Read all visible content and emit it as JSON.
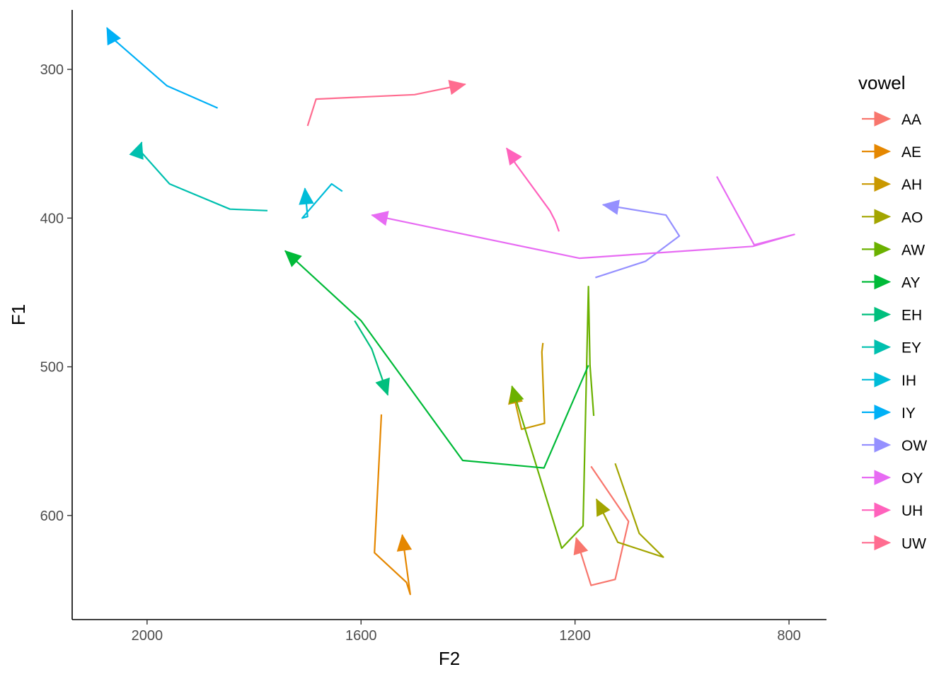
{
  "chart_data": {
    "type": "line",
    "xlabel": "F2",
    "ylabel": "F1",
    "x_reversed": true,
    "y_reversed": true,
    "xlim": [
      2140,
      730
    ],
    "ylim": [
      260,
      670
    ],
    "x_ticks": [
      2000,
      1600,
      1200,
      800
    ],
    "y_ticks": [
      300,
      400,
      500,
      600
    ],
    "grid": false,
    "legend": {
      "title": "vowel",
      "position": "right"
    },
    "series": [
      {
        "name": "AA",
        "color": "#F8766D",
        "points": [
          [
            1170,
            567
          ],
          [
            1100,
            604
          ],
          [
            1125,
            643
          ],
          [
            1170,
            647
          ],
          [
            1198,
            615
          ]
        ]
      },
      {
        "name": "AE",
        "color": "#E58700",
        "points": [
          [
            1562,
            532
          ],
          [
            1575,
            625
          ],
          [
            1515,
            645
          ],
          [
            1508,
            653
          ],
          [
            1523,
            613
          ]
        ]
      },
      {
        "name": "AH",
        "color": "#C99800",
        "points": [
          [
            1260,
            484
          ],
          [
            1262,
            490
          ],
          [
            1257,
            538
          ],
          [
            1300,
            542
          ],
          [
            1318,
            514
          ]
        ]
      },
      {
        "name": "AO",
        "color": "#A3A500",
        "points": [
          [
            1125,
            565
          ],
          [
            1080,
            612
          ],
          [
            1035,
            628
          ],
          [
            1120,
            618
          ],
          [
            1160,
            589
          ]
        ]
      },
      {
        "name": "AW",
        "color": "#6BB100",
        "points": [
          [
            1165,
            533
          ],
          [
            1172,
            499
          ],
          [
            1175,
            446
          ],
          [
            1185,
            607
          ],
          [
            1225,
            622
          ],
          [
            1318,
            513
          ]
        ]
      },
      {
        "name": "AY",
        "color": "#00BA38",
        "points": [
          [
            1175,
            499
          ],
          [
            1258,
            568
          ],
          [
            1410,
            563
          ],
          [
            1600,
            469
          ],
          [
            1742,
            422
          ]
        ]
      },
      {
        "name": "EH",
        "color": "#00BF7D",
        "points": [
          [
            1612,
            469
          ],
          [
            1580,
            488
          ],
          [
            1550,
            519
          ]
        ]
      },
      {
        "name": "EY",
        "color": "#00C0AF",
        "points": [
          [
            1775,
            395
          ],
          [
            1845,
            394
          ],
          [
            1958,
            377
          ],
          [
            2015,
            354
          ],
          [
            2010,
            349
          ]
        ]
      },
      {
        "name": "IH",
        "color": "#00BCD8",
        "points": [
          [
            1635,
            382
          ],
          [
            1655,
            377
          ],
          [
            1710,
            400
          ],
          [
            1700,
            399
          ],
          [
            1705,
            380
          ]
        ]
      },
      {
        "name": "IY",
        "color": "#00B0F6",
        "points": [
          [
            1868,
            326
          ],
          [
            1963,
            311
          ],
          [
            2065,
            279
          ],
          [
            2075,
            272
          ]
        ]
      },
      {
        "name": "OW",
        "color": "#9590FF",
        "points": [
          [
            1162,
            440
          ],
          [
            1068,
            429
          ],
          [
            1005,
            412
          ],
          [
            1030,
            398
          ],
          [
            1148,
            391
          ]
        ]
      },
      {
        "name": "OY",
        "color": "#E76BF3",
        "points": [
          [
            935,
            372
          ],
          [
            865,
            418
          ],
          [
            790,
            411
          ],
          [
            868,
            419
          ],
          [
            1192,
            427
          ],
          [
            1580,
            398
          ]
        ]
      },
      {
        "name": "UH",
        "color": "#FF62BC",
        "points": [
          [
            1230,
            409
          ],
          [
            1237,
            402
          ],
          [
            1247,
            395
          ],
          [
            1312,
            363
          ],
          [
            1322,
            356
          ],
          [
            1328,
            353
          ]
        ]
      },
      {
        "name": "UW",
        "color": "#FF6C90",
        "points": [
          [
            1700,
            338
          ],
          [
            1684,
            320
          ],
          [
            1500,
            317
          ],
          [
            1405,
            310
          ]
        ]
      }
    ]
  }
}
